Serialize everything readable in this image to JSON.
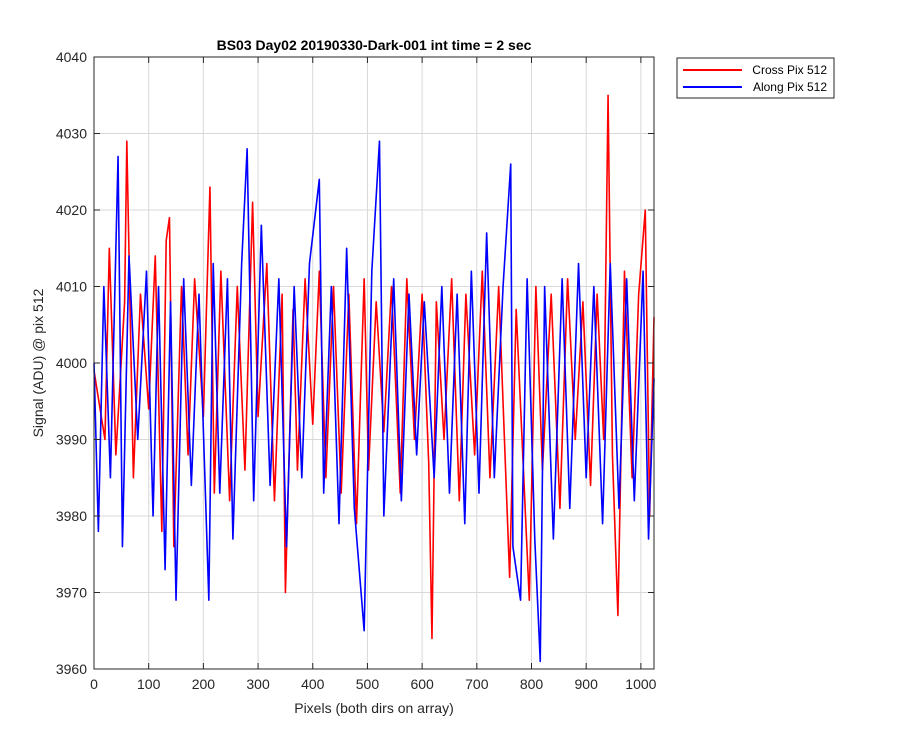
{
  "chart_data": {
    "type": "line",
    "title": "BS03 Day02 20190330-Dark-001 int time = 2 sec",
    "xlabel": "Pixels (both dirs on array)",
    "ylabel": "Signal (ADU) @ pix 512",
    "xlim": [
      0,
      1024
    ],
    "ylim": [
      3960,
      4040
    ],
    "xticks": [
      0,
      100,
      200,
      300,
      400,
      500,
      600,
      700,
      800,
      900,
      1000
    ],
    "yticks": [
      3960,
      3970,
      3980,
      3990,
      4000,
      4010,
      4020,
      4030,
      4040
    ],
    "grid": true,
    "legend_position": "outside-top-right",
    "series": [
      {
        "name": "Cross Pix 512",
        "color": "#ff0000",
        "x": [
          0,
          20,
          28,
          40,
          56,
          60,
          72,
          85,
          100,
          112,
          124,
          132,
          138,
          146,
          160,
          172,
          184,
          200,
          212,
          220,
          232,
          248,
          262,
          276,
          290,
          300,
          316,
          330,
          344,
          350,
          364,
          372,
          386,
          400,
          412,
          424,
          438,
          452,
          466,
          480,
          494,
          502,
          516,
          530,
          544,
          560,
          572,
          586,
          600,
          612,
          618,
          626,
          640,
          654,
          668,
          680,
          696,
          710,
          724,
          740,
          760,
          772,
          784,
          796,
          808,
          820,
          836,
          852,
          866,
          880,
          894,
          908,
          920,
          932,
          940,
          948,
          958,
          970,
          984,
          996,
          1008,
          1016,
          1024
        ],
        "values": [
          3999,
          3990,
          4015,
          3988,
          4008,
          4029,
          3985,
          4009,
          3994,
          4014,
          3978,
          4016,
          4019,
          3976,
          4010,
          3988,
          4011,
          3993,
          4023,
          3983,
          4012,
          3982,
          4010,
          3986,
          4021,
          3993,
          4013,
          3982,
          4009,
          3970,
          4007,
          3986,
          4011,
          3992,
          4012,
          3985,
          4010,
          3983,
          4009,
          3979,
          4011,
          3986,
          4008,
          3991,
          4010,
          3983,
          4011,
          3990,
          4009,
          3987,
          3964,
          4008,
          3990,
          4011,
          3982,
          4009,
          3988,
          4012,
          3985,
          4010,
          3972,
          4007,
          3988,
          3969,
          4010,
          3986,
          4009,
          3981,
          4011,
          3990,
          4008,
          3984,
          4009,
          3990,
          4035,
          3988,
          3967,
          4012,
          3985,
          4009,
          4020,
          3980,
          4006
        ]
      },
      {
        "name": "Along Pix 512",
        "color": "#0000ff",
        "x": [
          0,
          8,
          18,
          30,
          44,
          52,
          64,
          80,
          96,
          108,
          118,
          130,
          140,
          150,
          164,
          178,
          192,
          210,
          218,
          230,
          244,
          254,
          270,
          280,
          292,
          306,
          322,
          338,
          352,
          366,
          380,
          394,
          412,
          420,
          434,
          448,
          462,
          476,
          494,
          508,
          522,
          530,
          548,
          562,
          576,
          590,
          604,
          622,
          636,
          650,
          664,
          678,
          690,
          704,
          718,
          732,
          748,
          762,
          766,
          780,
          792,
          806,
          816,
          824,
          840,
          856,
          870,
          886,
          900,
          914,
          930,
          944,
          960,
          974,
          988,
          1004,
          1014,
          1024
        ],
        "values": [
          4000,
          3978,
          4010,
          3985,
          4027,
          3976,
          4014,
          3990,
          4012,
          3980,
          4010,
          3973,
          4008,
          3969,
          4011,
          3984,
          4009,
          3969,
          4013,
          3983,
          4011,
          3977,
          4013,
          4028,
          3982,
          4018,
          3984,
          4011,
          3976,
          4010,
          3985,
          4013,
          4024,
          3983,
          4010,
          3979,
          4015,
          3981,
          3965,
          4012,
          4029,
          3980,
          4011,
          3982,
          4009,
          3988,
          4008,
          3985,
          4010,
          3983,
          4009,
          3979,
          4012,
          3983,
          4017,
          3985,
          4010,
          4026,
          3976,
          3969,
          4011,
          3977,
          3961,
          4010,
          3977,
          4011,
          3981,
          4013,
          3985,
          4010,
          3979,
          4013,
          3981,
          4011,
          3982,
          4012,
          3977,
          3998
        ]
      }
    ]
  }
}
